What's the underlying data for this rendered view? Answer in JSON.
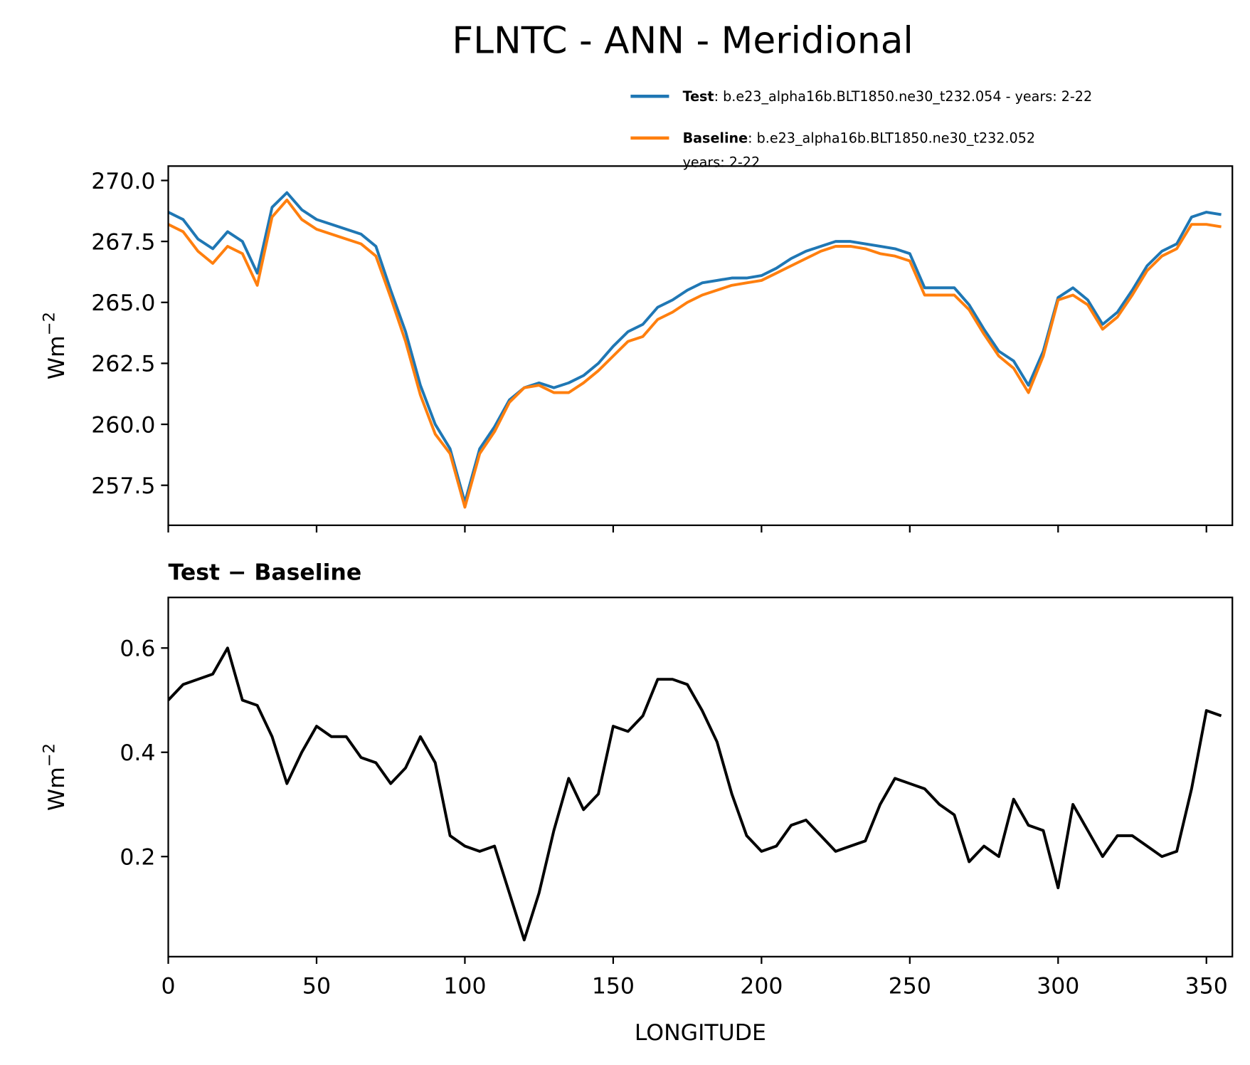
{
  "title": "FLNTC - ANN - Meridional",
  "chart_data": [
    {
      "type": "line",
      "x": [
        0,
        5,
        10,
        15,
        20,
        25,
        30,
        35,
        40,
        45,
        50,
        55,
        60,
        65,
        70,
        75,
        80,
        85,
        90,
        95,
        100,
        105,
        110,
        115,
        120,
        125,
        130,
        135,
        140,
        145,
        150,
        155,
        160,
        165,
        170,
        175,
        180,
        185,
        190,
        195,
        200,
        205,
        210,
        215,
        220,
        225,
        230,
        235,
        240,
        245,
        250,
        255,
        260,
        265,
        270,
        275,
        280,
        285,
        290,
        295,
        300,
        305,
        310,
        315,
        320,
        325,
        330,
        335,
        340,
        345,
        350,
        355
      ],
      "series": [
        {
          "name": "Test",
          "description": [
            ": b.e23_alpha16b.BLT1850.ne30_t232.054 - years: 2-22"
          ],
          "color": "#1f77b4",
          "values": [
            268.7,
            268.4,
            267.6,
            267.2,
            267.9,
            267.5,
            266.2,
            268.9,
            269.5,
            268.8,
            268.4,
            268.2,
            268.0,
            267.8,
            267.3,
            265.5,
            263.8,
            261.6,
            260.0,
            259.0,
            256.8,
            259.0,
            259.9,
            261.0,
            261.5,
            261.7,
            261.5,
            261.7,
            262.0,
            262.5,
            263.2,
            263.8,
            264.1,
            264.8,
            265.1,
            265.5,
            265.8,
            265.9,
            266.0,
            266.0,
            266.1,
            266.4,
            266.8,
            267.1,
            267.3,
            267.5,
            267.5,
            267.4,
            267.3,
            267.2,
            267.0,
            265.6,
            265.6,
            265.6,
            264.9,
            263.9,
            263.0,
            262.6,
            261.6,
            263.0,
            265.2,
            265.6,
            265.1,
            264.1,
            264.6,
            265.5,
            266.5,
            267.1,
            267.4,
            268.5,
            268.7,
            268.6
          ]
        },
        {
          "name": "Baseline",
          "description": [
            ": b.e23_alpha16b.BLT1850.ne30_t232.052",
            "years: 2-22"
          ],
          "color": "#ff7f0e",
          "values": [
            268.2,
            267.9,
            267.1,
            266.6,
            267.3,
            267.0,
            265.7,
            268.5,
            269.2,
            268.4,
            268.0,
            267.8,
            267.6,
            267.4,
            266.9,
            265.2,
            263.4,
            261.2,
            259.6,
            258.8,
            256.6,
            258.8,
            259.7,
            260.9,
            261.5,
            261.6,
            261.3,
            261.3,
            261.7,
            262.2,
            262.8,
            263.4,
            263.6,
            264.3,
            264.6,
            265.0,
            265.3,
            265.5,
            265.7,
            265.8,
            265.9,
            266.2,
            266.5,
            266.8,
            267.1,
            267.3,
            267.3,
            267.2,
            267.0,
            266.9,
            266.7,
            265.3,
            265.3,
            265.3,
            264.7,
            263.7,
            262.8,
            262.3,
            261.3,
            262.8,
            265.1,
            265.3,
            264.9,
            263.9,
            264.4,
            265.3,
            266.3,
            266.9,
            267.2,
            268.2,
            268.2,
            268.1
          ]
        }
      ],
      "xlim": [
        0,
        358.75
      ],
      "xticks": [
        0,
        50,
        100,
        150,
        200,
        250,
        300,
        350
      ],
      "xtick_labels": false,
      "ylim": [
        255.86,
        270.59
      ],
      "yticks": [
        257.5,
        {
          "value": 260,
          "label": "260.0"
        },
        262.5,
        {
          "value": 265,
          "label": "265.0"
        },
        267.5,
        {
          "value": 270,
          "label": "270.0"
        }
      ],
      "ylabel": "Wm",
      "ylabel_superscript": "−2",
      "legend": "upper right"
    },
    {
      "type": "line",
      "title": "Test − Baseline",
      "x": [
        0,
        5,
        10,
        15,
        20,
        25,
        30,
        35,
        40,
        45,
        50,
        55,
        60,
        65,
        70,
        75,
        80,
        85,
        90,
        95,
        100,
        105,
        110,
        115,
        120,
        125,
        130,
        135,
        140,
        145,
        150,
        155,
        160,
        165,
        170,
        175,
        180,
        185,
        190,
        195,
        200,
        205,
        210,
        215,
        220,
        225,
        230,
        235,
        240,
        245,
        250,
        255,
        260,
        265,
        270,
        275,
        280,
        285,
        290,
        295,
        300,
        305,
        310,
        315,
        320,
        325,
        330,
        335,
        340,
        345,
        350,
        355
      ],
      "series": [
        {
          "color": "#000000",
          "values": [
            0.5,
            0.53,
            0.54,
            0.55,
            0.6,
            0.5,
            0.49,
            0.43,
            0.34,
            0.4,
            0.45,
            0.43,
            0.43,
            0.39,
            0.38,
            0.34,
            0.37,
            0.43,
            0.38,
            0.24,
            0.22,
            0.21,
            0.22,
            0.13,
            0.04,
            0.13,
            0.25,
            0.35,
            0.29,
            0.32,
            0.45,
            0.44,
            0.47,
            0.54,
            0.54,
            0.53,
            0.48,
            0.42,
            0.32,
            0.24,
            0.21,
            0.22,
            0.26,
            0.27,
            0.24,
            0.21,
            0.22,
            0.23,
            0.3,
            0.35,
            0.34,
            0.33,
            0.3,
            0.28,
            0.19,
            0.22,
            0.2,
            0.31,
            0.26,
            0.25,
            0.14,
            0.3,
            0.25,
            0.2,
            0.24,
            0.24,
            0.22,
            0.2,
            0.21,
            0.33,
            0.48,
            0.47
          ]
        }
      ],
      "xlim": [
        0,
        358.75
      ],
      "xticks": [
        0,
        50,
        100,
        150,
        200,
        250,
        300,
        350
      ],
      "xtick_labels": true,
      "ylim": [
        0.008,
        0.697
      ],
      "yticks": [
        0.2,
        0.4,
        0.6
      ],
      "ylabel": "Wm",
      "ylabel_superscript": "−2",
      "xlabel": "LONGITUDE"
    }
  ]
}
